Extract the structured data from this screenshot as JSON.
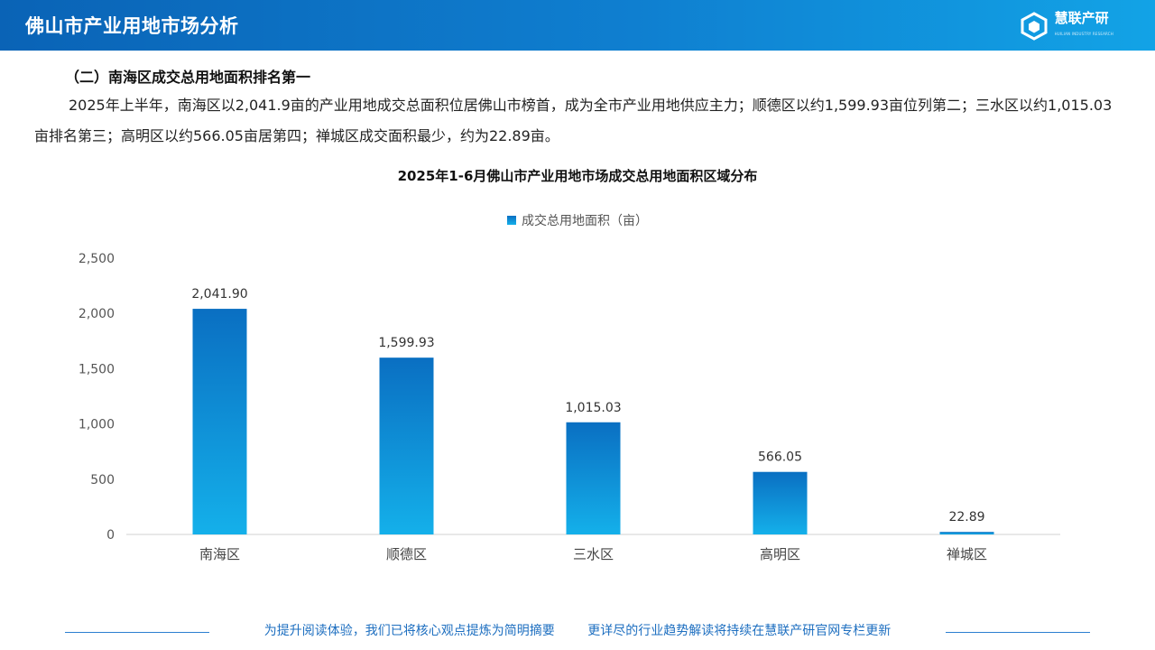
{
  "header": {
    "title": "佛山市产业用地市场分析",
    "logo_text": "慧联产研",
    "logo_subtext": "HUILIAN INDUSTRY RESEARCH"
  },
  "section": {
    "title": "（二）南海区成交总用地面积排名第一",
    "paragraph": "2025年上半年，南海区以2,041.9亩的产业用地成交总面积位居佛山市榜首，成为全市产业用地供应主力；顺德区以约1,599.93亩位列第二；三水区以约1,015.03亩排名第三；高明区以约566.05亩居第四；禅城区成交面积最少，约为22.89亩。"
  },
  "chart_data": {
    "type": "bar",
    "title": "2025年1-6月佛山市产业用地市场成交总用地面积区域分布",
    "categories": [
      "南海区",
      "顺德区",
      "三水区",
      "高明区",
      "禅城区"
    ],
    "series": [
      {
        "name": "成交总用地面积（亩）",
        "values": [
          2041.9,
          1599.93,
          1015.03,
          566.05,
          22.89
        ]
      }
    ],
    "data_labels": [
      "2,041.90",
      "1,599.93",
      "1,015.03",
      "566.05",
      "22.89"
    ],
    "y_ticks": [
      "0",
      "500",
      "1,000",
      "1,500",
      "2,000",
      "2,500"
    ],
    "ylim": [
      0,
      2500
    ],
    "legend_position": "top-center",
    "grid": false,
    "bar_color_top": "#0a6fc2",
    "bar_color_bottom": "#14b0ea"
  },
  "footer": {
    "left_text": "为提升阅读体验，我们已将核心观点提炼为简明摘要",
    "right_text": "更详尽的行业趋势解读将持续在慧联产研官网专栏更新"
  }
}
